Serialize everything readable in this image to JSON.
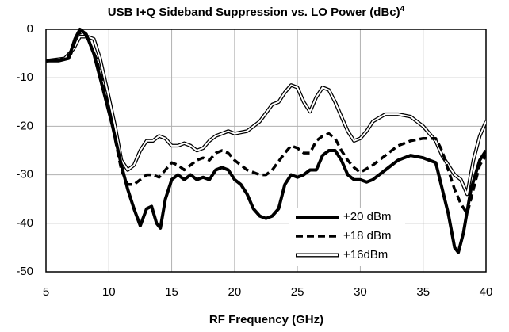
{
  "chart_data": {
    "type": "line",
    "title": "USB I+Q Sideband Suppression vs. LO Power (dBc)",
    "title_superscript": "4",
    "x_label": "RF Frequency (GHz)",
    "xlim": [
      5,
      40
    ],
    "xticks": [
      5,
      10,
      15,
      20,
      25,
      30,
      35,
      40
    ],
    "ylim": [
      -50,
      0
    ],
    "yticks": [
      -50,
      -40,
      -30,
      -20,
      -10,
      0
    ],
    "grid": true,
    "legend": "lower right",
    "series": [
      {
        "name": "+20 dBm",
        "color": "#000000",
        "style": "solid",
        "x": [
          5,
          6,
          6.8,
          7.3,
          7.7,
          8.2,
          8.8,
          9.5,
          10.3,
          11,
          11.5,
          12,
          12.5,
          13,
          13.4,
          13.8,
          14.1,
          14.5,
          15,
          15.5,
          16,
          16.5,
          17,
          17.5,
          18,
          18.5,
          19,
          19.5,
          20,
          20.5,
          21,
          21.5,
          22,
          22.5,
          23,
          23.5,
          24,
          24.5,
          25,
          25.5,
          26,
          26.5,
          27,
          27.5,
          28,
          28.5,
          29,
          29.5,
          30,
          30.5,
          31,
          32,
          33,
          34,
          35,
          36,
          37,
          37.5,
          37.8,
          38.2,
          38.8,
          39.5,
          40
        ],
        "values": [
          -6.5,
          -6.5,
          -6,
          -2,
          0,
          -1,
          -5,
          -12,
          -20,
          -28,
          -33,
          -37,
          -40.5,
          -37,
          -36.5,
          -40,
          -41,
          -35,
          -31,
          -30,
          -31,
          -30,
          -31,
          -30.5,
          -31,
          -29,
          -28.5,
          -29,
          -31,
          -32,
          -34,
          -37,
          -38.5,
          -39,
          -38.5,
          -37,
          -32,
          -30,
          -30.5,
          -30,
          -29,
          -29,
          -26,
          -25,
          -25,
          -27,
          -30,
          -31,
          -31,
          -31.5,
          -31,
          -29,
          -27,
          -26,
          -26.5,
          -27.5,
          -38,
          -45,
          -46,
          -42,
          -33,
          -27,
          -25
        ]
      },
      {
        "name": "+18 dBm",
        "color": "#000000",
        "style": "dashed",
        "x": [
          5,
          6,
          7,
          7.5,
          8,
          8.5,
          9,
          9.5,
          10.3,
          11,
          11.5,
          12,
          12.5,
          13,
          13.5,
          14,
          14.5,
          15,
          15.5,
          16,
          16.5,
          17,
          17.5,
          18,
          18.5,
          19,
          19.5,
          20,
          21,
          22,
          22.5,
          23,
          24,
          24.5,
          25,
          25.5,
          26,
          26.5,
          27,
          27.5,
          28,
          28.5,
          29,
          29.5,
          30,
          31,
          32,
          33,
          34,
          35,
          36,
          36.5,
          37,
          37.5,
          38,
          38.5,
          39,
          39.5,
          40
        ],
        "values": [
          -6.5,
          -6.5,
          -5,
          -1,
          -0.5,
          -3,
          -6,
          -11,
          -20,
          -29,
          -32,
          -32,
          -31,
          -30,
          -30,
          -30.5,
          -29,
          -27.5,
          -28,
          -29,
          -28,
          -27,
          -26.5,
          -27,
          -25.5,
          -25,
          -25.5,
          -27,
          -29,
          -30,
          -30,
          -29,
          -25.5,
          -24,
          -24.5,
          -25.5,
          -25.5,
          -23,
          -22,
          -21.5,
          -22.5,
          -25,
          -27,
          -28.5,
          -29.5,
          -28,
          -26,
          -24,
          -23,
          -22.5,
          -22.5,
          -25,
          -29,
          -33,
          -36,
          -38,
          -33,
          -28,
          -26
        ]
      },
      {
        "name": "+16dBm",
        "color": "#000000",
        "style": "double",
        "x": [
          5,
          6.5,
          7.2,
          7.7,
          8.3,
          8.8,
          9.3,
          10,
          10.5,
          11,
          11.5,
          12,
          12.5,
          13,
          13.5,
          14,
          14.5,
          15,
          15.5,
          16,
          16.5,
          17,
          17.5,
          18,
          18.5,
          19,
          19.5,
          20,
          21,
          22,
          23,
          23.5,
          24,
          24.5,
          25,
          25.5,
          26,
          26.5,
          27,
          27.5,
          28,
          28.5,
          29,
          29.5,
          30,
          30.5,
          31,
          32,
          33,
          34,
          35,
          36,
          36.5,
          37,
          37.5,
          38,
          38.5,
          39,
          39.5,
          40
        ],
        "values": [
          -6.5,
          -6,
          -4,
          -1.5,
          -1.5,
          -2,
          -6,
          -14,
          -20,
          -27,
          -29,
          -28,
          -25,
          -23,
          -23,
          -22,
          -22.5,
          -24,
          -24,
          -23.5,
          -24,
          -25,
          -24.5,
          -23,
          -22,
          -21.5,
          -21,
          -21.5,
          -21,
          -19,
          -15.5,
          -15,
          -13,
          -11.5,
          -12,
          -15,
          -17,
          -14,
          -12,
          -12.5,
          -15,
          -18,
          -21,
          -23,
          -22.5,
          -21,
          -19,
          -17.5,
          -17.5,
          -18,
          -20,
          -23,
          -26,
          -28,
          -30,
          -31,
          -34,
          -27,
          -22,
          -19
        ]
      }
    ]
  }
}
